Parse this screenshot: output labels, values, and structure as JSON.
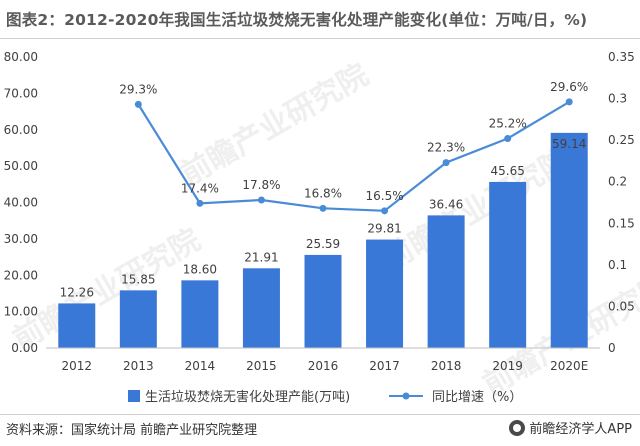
{
  "title": "图表2：2012-2020年我国生活垃圾焚烧无害化处理产能变化(单位：万吨/日，%)",
  "source": "资料来源：国家统计局 前瞻产业研究院整理",
  "brand": "前瞻经济学人APP",
  "watermark": "前瞻产业研究院",
  "colors": {
    "bar": "#3a78d8",
    "line": "#4a8bd8",
    "axis": "#bfbfbf",
    "text": "#404040"
  },
  "chart_data": {
    "type": "bar",
    "categories": [
      "2012",
      "2013",
      "2014",
      "2015",
      "2016",
      "2017",
      "2018",
      "2019",
      "2020E"
    ],
    "series": [
      {
        "name": "生活垃圾焚烧无害化处理产能(万吨)",
        "type": "bar",
        "axis": "left",
        "values": [
          12.26,
          15.85,
          18.6,
          21.91,
          25.59,
          29.81,
          36.46,
          45.65,
          59.14
        ],
        "labels": [
          "12.26",
          "15.85",
          "18.60",
          "21.91",
          "25.59",
          "29.81",
          "36.46",
          "45.65",
          "59.14"
        ]
      },
      {
        "name": "同比增速（%）",
        "type": "line",
        "axis": "right",
        "values": [
          null,
          0.293,
          0.174,
          0.178,
          0.168,
          0.165,
          0.223,
          0.252,
          0.296
        ],
        "labels": [
          "",
          "29.3%",
          "17.4%",
          "17.8%",
          "16.8%",
          "16.5%",
          "22.3%",
          "25.2%",
          "29.6%"
        ]
      }
    ],
    "y_left": {
      "min": 0,
      "max": 80,
      "ticks": [
        "0.00",
        "10.00",
        "20.00",
        "30.00",
        "40.00",
        "50.00",
        "60.00",
        "70.00",
        "80.00"
      ]
    },
    "y_right": {
      "min": 0,
      "max": 0.35,
      "ticks": [
        "0",
        "0.05",
        "0.1",
        "0.15",
        "0.2",
        "0.25",
        "0.3",
        "0.35"
      ]
    },
    "grid": false,
    "legend_position": "bottom"
  }
}
